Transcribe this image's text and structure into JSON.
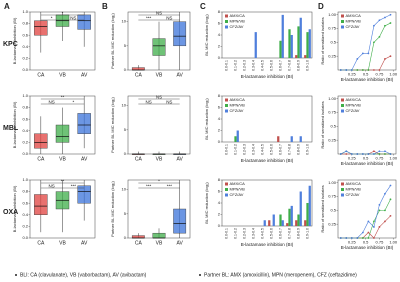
{
  "panels": [
    "A",
    "B",
    "C",
    "D"
  ],
  "rows": [
    "KPC",
    "MBL",
    "OXA"
  ],
  "footnotes": [
    "BLI: CA (clavulanate), VB (vaborbactam), AV (avibactam)",
    "Partner BL: AMX (amoxicillin), MPN (meropenem), CFZ (ceftazidime)"
  ],
  "chart_data": [
    {
      "type": "box",
      "ylabel": "B-lactamase inhibition (BI)",
      "ylim": [
        0,
        1
      ],
      "yticks": [
        {
          "value": 0,
          "label": "0.0"
        },
        {
          "value": 0.2,
          "label": "0.2"
        },
        {
          "value": 0.4,
          "label": "0.4"
        },
        {
          "value": 0.6,
          "label": "0.6"
        },
        {
          "value": 0.8,
          "label": "0.8"
        },
        {
          "value": 1,
          "label": "1.0"
        }
      ],
      "categories": [
        "CA",
        "VB",
        "AV"
      ],
      "colors": [
        "#e0413f",
        "#3fae49",
        "#3b73d9"
      ],
      "boxes": [
        {
          "low": 0.3,
          "q1": 0.6,
          "median": 0.75,
          "q3": 0.85,
          "high": 1
        },
        {
          "low": 0.5,
          "q1": 0.75,
          "median": 0.85,
          "q3": 0.95,
          "high": 1
        },
        {
          "low": 0.4,
          "q1": 0.7,
          "median": 0.85,
          "q3": 0.95,
          "high": 1
        }
      ],
      "annotations": [
        "*",
        "NS",
        "*"
      ]
    },
    {
      "type": "box",
      "ylabel": "Partner BL MIC reduction (log₂)",
      "ylim": [
        0,
        12
      ],
      "yticks": [
        0,
        5,
        10
      ],
      "categories": [
        "CA",
        "VB",
        "AV"
      ],
      "colors": [
        "#e0413f",
        "#3fae49",
        "#3b73d9"
      ],
      "boxes": [
        {
          "low": 0,
          "q1": 0,
          "median": 0,
          "q3": 0.5,
          "high": 1
        },
        {
          "low": 0,
          "q1": 3,
          "median": 5,
          "q3": 6.5,
          "high": 10
        },
        {
          "low": 0,
          "q1": 5,
          "median": 7,
          "q3": 10,
          "high": 12
        }
      ],
      "annotations": [
        "***",
        "NS",
        "NS"
      ]
    },
    {
      "type": "bar",
      "ylabel": "BL MIC reduction (log₂)",
      "xlabel": "B-lactamase inhibition (BI)",
      "ylim": [
        0,
        8
      ],
      "yticks": [
        0,
        2,
        4,
        6,
        8
      ],
      "categories": [
        "0.0-0.1",
        "0.1-0.2",
        "0.2-0.3",
        "0.3-0.4",
        "0.4-0.5",
        "0.5-0.6",
        "0.6-0.7",
        "0.7-0.8",
        "0.8-0.9",
        "0.9-1.0"
      ],
      "series": [
        {
          "name": "AMX/CA",
          "color": "#c0504d",
          "values": [
            0,
            0,
            0,
            0,
            0,
            0,
            0,
            0,
            0.5,
            0.5
          ]
        },
        {
          "name": "MPN/VB",
          "color": "#3fae49",
          "values": [
            0,
            0,
            0,
            0,
            0,
            0,
            3,
            5,
            5.5,
            4.5
          ]
        },
        {
          "name": "CFZ/AV",
          "color": "#4f7fdc",
          "values": [
            0,
            0,
            0,
            4.5,
            0,
            0,
            7.5,
            4,
            7,
            5
          ]
        }
      ]
    },
    {
      "type": "line",
      "ylabel": "Ratio of sensitized isolates",
      "xlabel": "B-lactamase inhibition (BI)",
      "xlim": [
        0,
        1.05
      ],
      "xticks": [
        0.25,
        0.5,
        0.75,
        {
          "value": 1,
          "label": "1.00"
        }
      ],
      "ylim": [
        0,
        1.05
      ],
      "yticks": [
        0.25,
        0.5,
        0.75,
        {
          "value": 1,
          "label": "1.00"
        }
      ],
      "x": [
        0.05,
        0.15,
        0.25,
        0.35,
        0.45,
        0.55,
        0.65,
        0.75,
        0.85,
        0.95
      ],
      "series": [
        {
          "name": "AMX/CA",
          "color": "#c0504d",
          "values": [
            0,
            0,
            0,
            0,
            0,
            0,
            0,
            0,
            0.2,
            0.25
          ]
        },
        {
          "name": "MPN/VB",
          "color": "#3fae49",
          "values": [
            0,
            0,
            0,
            0,
            0,
            0,
            0.5,
            0.6,
            0.8,
            0.85
          ]
        },
        {
          "name": "CFZ/AV",
          "color": "#4f7fdc",
          "values": [
            0,
            0,
            0,
            0.2,
            0.3,
            0.3,
            0.8,
            0.9,
            0.95,
            1
          ]
        }
      ]
    },
    {
      "type": "box",
      "ylabel": "B-lactamase inhibition (BI)",
      "ylim": [
        0,
        1
      ],
      "yticks": [
        {
          "value": 0,
          "label": "0.0"
        },
        {
          "value": 0.2,
          "label": "0.2"
        },
        {
          "value": 0.4,
          "label": "0.4"
        },
        {
          "value": 0.6,
          "label": "0.6"
        },
        {
          "value": 0.8,
          "label": "0.8"
        },
        {
          "value": 1,
          "label": "1.0"
        }
      ],
      "categories": [
        "CA",
        "VB",
        "AV"
      ],
      "colors": [
        "#e0413f",
        "#3fae49",
        "#3b73d9"
      ],
      "boxes": [
        {
          "low": 0,
          "q1": 0.1,
          "median": 0.2,
          "q3": 0.35,
          "high": 0.65
        },
        {
          "low": 0,
          "q1": 0.2,
          "median": 0.3,
          "q3": 0.5,
          "high": 0.8
        },
        {
          "low": 0.1,
          "q1": 0.35,
          "median": 0.5,
          "q3": 0.7,
          "high": 1
        }
      ],
      "annotations": [
        "NS",
        "*",
        "**"
      ]
    },
    {
      "type": "box",
      "ylabel": "Partner BL MIC reduction (log₂)",
      "ylim": [
        0,
        12
      ],
      "yticks": [
        0,
        5,
        10
      ],
      "categories": [
        "CA",
        "VB",
        "AV"
      ],
      "colors": [
        "#e0413f",
        "#3fae49",
        "#3b73d9"
      ],
      "boxes": [
        {
          "low": 0,
          "q1": 0,
          "median": 0,
          "q3": 0,
          "high": 0.5
        },
        {
          "low": 0,
          "q1": 0,
          "median": 0,
          "q3": 0,
          "high": 0.5
        },
        {
          "low": 0,
          "q1": 0,
          "median": 0,
          "q3": 0,
          "high": 0.5
        }
      ],
      "annotations": [
        "NS",
        "NS",
        "NS"
      ]
    },
    {
      "type": "bar",
      "ylabel": "BL MIC reduction (log₂)",
      "xlabel": "B-lactamase inhibition (BI)",
      "ylim": [
        0,
        8
      ],
      "yticks": [
        0,
        2,
        4,
        6,
        8
      ],
      "categories": [
        "0.0-0.1",
        "0.1-0.2",
        "0.2-0.3",
        "0.3-0.4",
        "0.4-0.5",
        "0.5-0.6",
        "0.6-0.7",
        "0.7-0.8",
        "0.8-0.9",
        "0.9-1.0"
      ],
      "series": [
        {
          "name": "AMX/CA",
          "color": "#c0504d",
          "values": [
            0,
            0,
            0,
            0,
            0,
            0,
            1,
            0,
            0,
            0
          ]
        },
        {
          "name": "MPN/VB",
          "color": "#3fae49",
          "values": [
            0,
            1,
            0,
            0,
            0,
            0,
            0,
            0,
            0,
            0
          ]
        },
        {
          "name": "CFZ/AV",
          "color": "#4f7fdc",
          "values": [
            0,
            2,
            0,
            0,
            0,
            0,
            0,
            1,
            1,
            0
          ]
        }
      ]
    },
    {
      "type": "line",
      "ylabel": "Ratio of sensitized isolates",
      "xlabel": "B-lactamase inhibition (BI)",
      "xlim": [
        0,
        1.05
      ],
      "xticks": [
        0.25,
        0.5,
        0.75,
        {
          "value": 1,
          "label": "1.00"
        }
      ],
      "ylim": [
        0,
        1.05
      ],
      "yticks": [
        0.25,
        0.5,
        0.75,
        {
          "value": 1,
          "label": "1.00"
        }
      ],
      "x": [
        0.05,
        0.15,
        0.25,
        0.35,
        0.45,
        0.55,
        0.65,
        0.75,
        0.85,
        0.95
      ],
      "series": [
        {
          "name": "AMX/CA",
          "color": "#c0504d",
          "values": [
            0,
            0,
            0,
            0,
            0,
            0,
            0.05,
            0,
            0,
            0
          ]
        },
        {
          "name": "MPN/VB",
          "color": "#3fae49",
          "values": [
            0,
            0.05,
            0,
            0,
            0,
            0,
            0,
            0,
            0,
            0
          ]
        },
        {
          "name": "CFZ/AV",
          "color": "#4f7fdc",
          "values": [
            0,
            0.05,
            0,
            0,
            0,
            0,
            0,
            0.05,
            0.05,
            0
          ]
        }
      ]
    },
    {
      "type": "box",
      "ylabel": "B-lactamase inhibition (BI)",
      "ylim": [
        0,
        1
      ],
      "yticks": [
        {
          "value": 0,
          "label": "0.0"
        },
        {
          "value": 0.2,
          "label": "0.2"
        },
        {
          "value": 0.4,
          "label": "0.4"
        },
        {
          "value": 0.6,
          "label": "0.6"
        },
        {
          "value": 0.8,
          "label": "0.8"
        },
        {
          "value": 1,
          "label": "1.0"
        }
      ],
      "categories": [
        "CA",
        "VB",
        "AV"
      ],
      "colors": [
        "#e0413f",
        "#3fae49",
        "#3b73d9"
      ],
      "boxes": [
        {
          "low": 0.1,
          "q1": 0.4,
          "median": 0.55,
          "q3": 0.75,
          "high": 1
        },
        {
          "low": 0.1,
          "q1": 0.5,
          "median": 0.65,
          "q3": 0.8,
          "high": 1
        },
        {
          "low": 0.3,
          "q1": 0.6,
          "median": 0.8,
          "q3": 0.9,
          "high": 1
        }
      ],
      "annotations": [
        "NS",
        "***",
        "**"
      ]
    },
    {
      "type": "box",
      "ylabel": "Partner BL MIC reduction (log₂)",
      "ylim": [
        0,
        12
      ],
      "yticks": [
        0,
        5,
        10
      ],
      "categories": [
        "CA",
        "VB",
        "AV"
      ],
      "colors": [
        "#e0413f",
        "#3fae49",
        "#3b73d9"
      ],
      "boxes": [
        {
          "low": 0,
          "q1": 0,
          "median": 0,
          "q3": 0.5,
          "high": 1
        },
        {
          "low": 0,
          "q1": 0,
          "median": 0,
          "q3": 1,
          "high": 2
        },
        {
          "low": 0,
          "q1": 1,
          "median": 3,
          "q3": 6,
          "high": 12
        }
      ],
      "annotations": [
        "***",
        "***",
        "*"
      ]
    },
    {
      "type": "bar",
      "ylabel": "BL MIC reduction (log₂)",
      "xlabel": "B-lactamase inhibition (BI)",
      "ylim": [
        0,
        8
      ],
      "yticks": [
        0,
        2,
        4,
        6,
        8
      ],
      "categories": [
        "0.0-0.1",
        "0.1-0.2",
        "0.2-0.3",
        "0.3-0.4",
        "0.4-0.5",
        "0.5-0.6",
        "0.6-0.7",
        "0.7-0.8",
        "0.8-0.9",
        "0.9-1.0"
      ],
      "series": [
        {
          "name": "AMX/CA",
          "color": "#c0504d",
          "values": [
            0,
            0,
            0,
            0,
            0,
            1,
            0,
            0.5,
            1,
            1
          ]
        },
        {
          "name": "MPN/VB",
          "color": "#3fae49",
          "values": [
            0,
            0,
            0,
            0,
            0,
            0,
            2,
            3,
            2,
            4
          ]
        },
        {
          "name": "CFZ/AV",
          "color": "#4f7fdc",
          "values": [
            0,
            0,
            0,
            0,
            1,
            2,
            1,
            3.5,
            6,
            7
          ]
        }
      ]
    },
    {
      "type": "line",
      "ylabel": "Ratio of sensitized isolates",
      "xlabel": "B-lactamase inhibition (BI)",
      "xlim": [
        0,
        1.05
      ],
      "xticks": [
        0.25,
        0.5,
        0.75,
        {
          "value": 1,
          "label": "1.00"
        }
      ],
      "ylim": [
        0,
        1.05
      ],
      "yticks": [
        0.25,
        0.5,
        0.75,
        {
          "value": 1,
          "label": "1.00"
        }
      ],
      "x": [
        0.05,
        0.15,
        0.25,
        0.35,
        0.45,
        0.55,
        0.65,
        0.75,
        0.85,
        0.95
      ],
      "series": [
        {
          "name": "AMX/CA",
          "color": "#c0504d",
          "values": [
            0,
            0,
            0,
            0,
            0,
            0.1,
            0,
            0.2,
            0.3,
            0.4
          ]
        },
        {
          "name": "MPN/VB",
          "color": "#3fae49",
          "values": [
            0,
            0,
            0,
            0,
            0,
            0,
            0.3,
            0.5,
            0.5,
            0.7
          ]
        },
        {
          "name": "CFZ/AV",
          "color": "#4f7fdc",
          "values": [
            0,
            0,
            0,
            0,
            0.1,
            0.3,
            0.2,
            0.6,
            0.8,
            0.95
          ]
        }
      ]
    }
  ]
}
